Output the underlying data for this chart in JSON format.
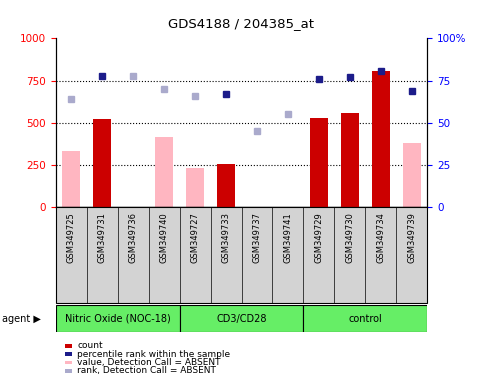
{
  "title": "GDS4188 / 204385_at",
  "samples": [
    "GSM349725",
    "GSM349731",
    "GSM349736",
    "GSM349740",
    "GSM349727",
    "GSM349733",
    "GSM349737",
    "GSM349741",
    "GSM349729",
    "GSM349730",
    "GSM349734",
    "GSM349739"
  ],
  "count_present": [
    null,
    525,
    null,
    null,
    null,
    255,
    null,
    null,
    530,
    560,
    810,
    null
  ],
  "count_absent": [
    335,
    null,
    null,
    415,
    235,
    null,
    null,
    null,
    null,
    null,
    null,
    380
  ],
  "rank_present": [
    null,
    78,
    null,
    null,
    null,
    67,
    null,
    null,
    76,
    77,
    81,
    69
  ],
  "rank_absent": [
    64,
    null,
    78,
    70,
    66,
    null,
    45,
    55,
    null,
    null,
    null,
    null
  ],
  "ylim_left": [
    0,
    1000
  ],
  "ylim_right": [
    0,
    100
  ],
  "yticks_left": [
    0,
    250,
    500,
    750,
    1000
  ],
  "yticks_right": [
    0,
    25,
    50,
    75,
    100
  ],
  "dark_red": "#CC0000",
  "pink": "#FFB6C1",
  "dark_blue": "#1C1C8A",
  "light_blue": "#AAAACC",
  "green": "#66EE66",
  "gray": "#D3D3D3",
  "group_labels": [
    "Nitric Oxide (NOC-18)",
    "CD3/CD28",
    "control"
  ],
  "group_ranges": [
    [
      0,
      3
    ],
    [
      4,
      7
    ],
    [
      8,
      11
    ]
  ],
  "legend_items": [
    {
      "label": "count",
      "color": "#CC0000"
    },
    {
      "label": "percentile rank within the sample",
      "color": "#1C1C8A"
    },
    {
      "label": "value, Detection Call = ABSENT",
      "color": "#FFB6C1"
    },
    {
      "label": "rank, Detection Call = ABSENT",
      "color": "#AAAACC"
    }
  ]
}
